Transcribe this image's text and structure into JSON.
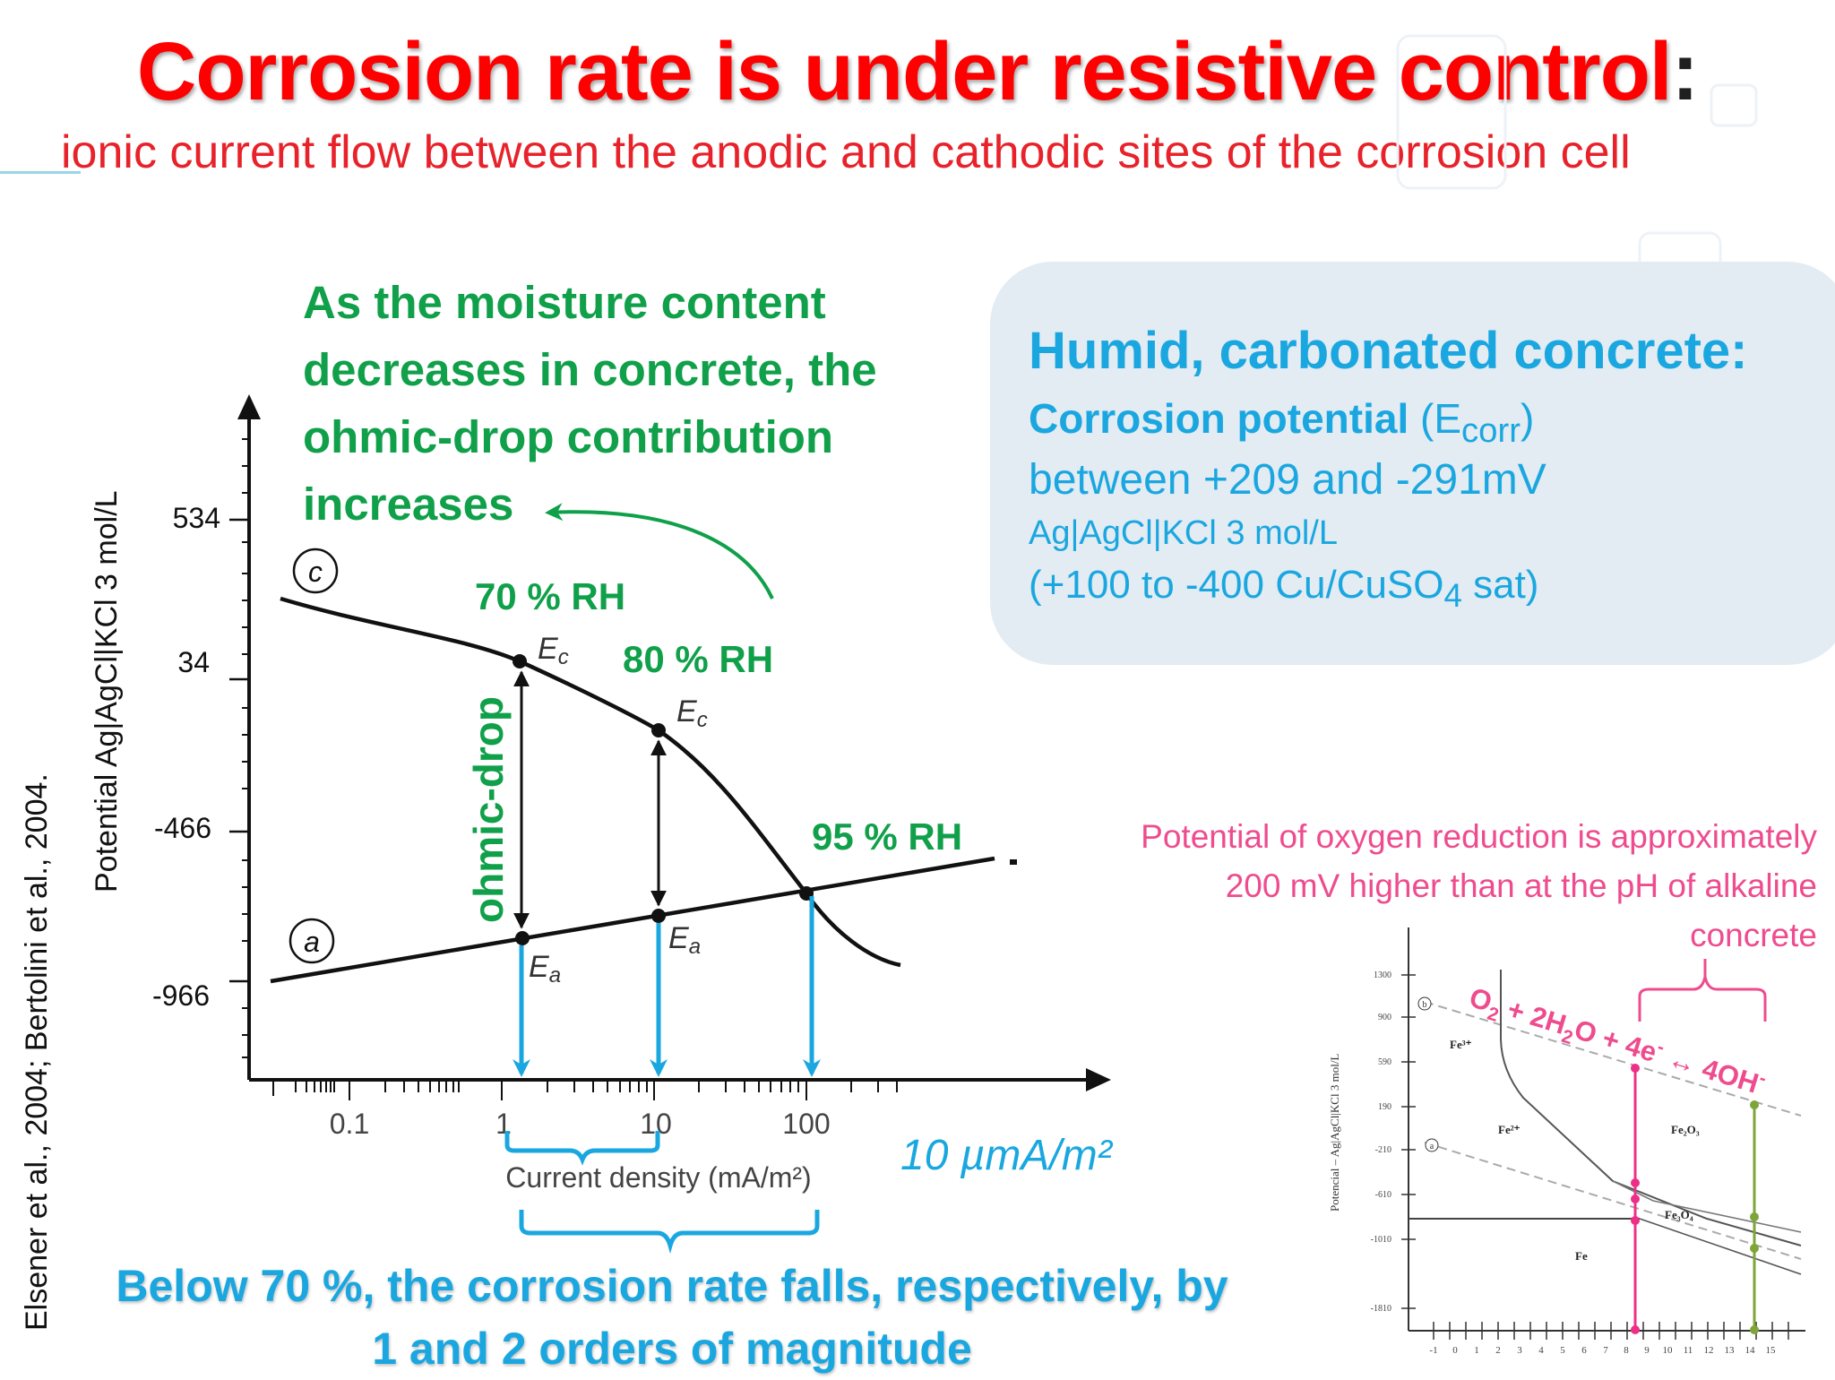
{
  "title": {
    "main": "Corrosion rate is under resistive control",
    "colon": ":",
    "subtitle": "ionic current flow between the anodic and cathodic sites of the corrosion cell"
  },
  "moisture_note": "As the moisture content decreases in concrete, the ohmic-drop contribution increases",
  "info_box": {
    "heading": "Humid, carbonated concrete:",
    "potential_label": "Corrosion potential",
    "ecorr_open": "(E",
    "ecorr_sub": "corr",
    "ecorr_close": ")",
    "range": "between +209 and -291mV",
    "electrode": "Ag|AgCl|KCl 3 mol/L",
    "cu_prefix": "(+100 to -400 Cu/CuSO",
    "cu_sub": "4",
    "cu_suffix": " sat)"
  },
  "left_chart": {
    "citation": "Elsener  et al., 2004; Bertolini et al., 2004.",
    "y_axis_label": "Potential Ag|AgCl|KCl 3 mol/L",
    "y_ticks": [
      "534",
      "34",
      "-466",
      "-966"
    ],
    "x_ticks": [
      "0.1",
      "1",
      "10",
      "100"
    ],
    "x_axis_label": "Current density (mA/m²)",
    "curve_c": "c",
    "curve_a": "a",
    "rh_labels": [
      "70 % RH",
      "80 % RH",
      "95 % RH"
    ],
    "ec_label": "E",
    "ec_sub": "c",
    "ea_label": "E",
    "ea_sub": "a",
    "ohmic_drop": "ohmic-drop",
    "unit_label": "10  µmA/m²",
    "below_note": "Below 70 %, the corrosion rate falls, respectively, by 1 and 2 orders of magnitude"
  },
  "right_chart": {
    "note": "Potential of oxygen reduction is approximately 200 mV higher than at the pH of alkaline concrete",
    "reaction": {
      "o": "O",
      "o_sub": "2",
      "mid": " + 2H",
      "h_sub": "2",
      "end1": "O + 4e",
      "e_sup": "-",
      "end2": " ↔ 4OH",
      "oh_sup": "-"
    },
    "y_axis_label": "Potencial – Ag|AgCl|KCl 3 mol/L",
    "y_ticks": [
      "1300",
      "900",
      "590",
      "190",
      "-210",
      "-610",
      "-1010",
      "-1810"
    ],
    "x_ticks": [
      "-1",
      "0",
      "1",
      "2",
      "3",
      "4",
      "5",
      "6",
      "7",
      "8",
      "9",
      "10",
      "11",
      "12",
      "13",
      "14",
      "15"
    ],
    "species": {
      "fe3": "Fe³⁺",
      "fe2": "Fe²⁺",
      "fe2o3": "Fe₂O₃",
      "fe3o4": "Fe₃O₄",
      "fe": "Fe"
    },
    "line_b": "b",
    "line_a": "a"
  },
  "colors": {
    "title_red": "#ff0000",
    "green": "#10a04a",
    "blue": "#1aa7e0",
    "pink": "#ee4c8e",
    "olive": "#7fa43a",
    "info_box_bg": "#e3ebf3"
  }
}
